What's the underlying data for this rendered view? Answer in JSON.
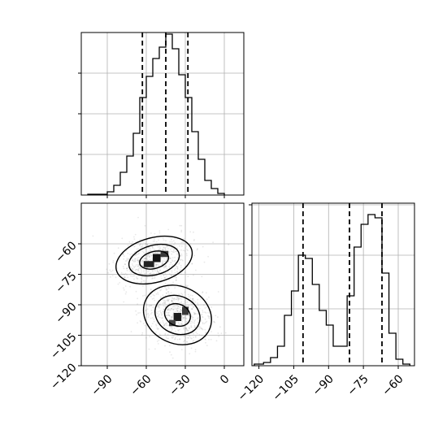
{
  "chart_data": [
    {
      "id": "top-hist",
      "type": "histogram",
      "variable": "x",
      "xlim": [
        -110,
        15
      ],
      "ylim": [
        0,
        1.0
      ],
      "bins": [
        {
          "x0": -105,
          "x1": -90,
          "v": 0.005
        },
        {
          "x0": -90,
          "x1": -85,
          "v": 0.02
        },
        {
          "x0": -85,
          "x1": -80,
          "v": 0.06
        },
        {
          "x0": -80,
          "x1": -75,
          "v": 0.14
        },
        {
          "x0": -75,
          "x1": -70,
          "v": 0.24
        },
        {
          "x0": -70,
          "x1": -65,
          "v": 0.38
        },
        {
          "x0": -65,
          "x1": -60,
          "v": 0.6
        },
        {
          "x0": -60,
          "x1": -55,
          "v": 0.73
        },
        {
          "x0": -55,
          "x1": -50,
          "v": 0.84
        },
        {
          "x0": -50,
          "x1": -45,
          "v": 0.91
        },
        {
          "x0": -45,
          "x1": -40,
          "v": 0.99
        },
        {
          "x0": -40,
          "x1": -35,
          "v": 0.9
        },
        {
          "x0": -35,
          "x1": -30,
          "v": 0.74
        },
        {
          "x0": -30,
          "x1": -25,
          "v": 0.6
        },
        {
          "x0": -25,
          "x1": -20,
          "v": 0.39
        },
        {
          "x0": -20,
          "x1": -15,
          "v": 0.22
        },
        {
          "x0": -15,
          "x1": -10,
          "v": 0.09
        },
        {
          "x0": -10,
          "x1": -5,
          "v": 0.04
        },
        {
          "x0": -5,
          "x1": 0,
          "v": 0.01
        }
      ],
      "quantiles": [
        -63,
        -45,
        -28
      ]
    },
    {
      "id": "right-hist",
      "type": "histogram",
      "variable": "y",
      "xlim": [
        -123,
        -53
      ],
      "ylim": [
        0,
        1.0
      ],
      "bins": [
        {
          "x0": -122,
          "x1": -118,
          "v": 0.01
        },
        {
          "x0": -118,
          "x1": -115,
          "v": 0.02
        },
        {
          "x0": -115,
          "x1": -112,
          "v": 0.05
        },
        {
          "x0": -112,
          "x1": -109,
          "v": 0.12
        },
        {
          "x0": -109,
          "x1": -106,
          "v": 0.31
        },
        {
          "x0": -106,
          "x1": -103,
          "v": 0.46
        },
        {
          "x0": -103,
          "x1": -100,
          "v": 0.68
        },
        {
          "x0": -100,
          "x1": -97,
          "v": 0.66
        },
        {
          "x0": -97,
          "x1": -94,
          "v": 0.5
        },
        {
          "x0": -94,
          "x1": -91,
          "v": 0.34
        },
        {
          "x0": -91,
          "x1": -88,
          "v": 0.25
        },
        {
          "x0": -88,
          "x1": -85,
          "v": 0.12
        },
        {
          "x0": -85,
          "x1": -82,
          "v": 0.12
        },
        {
          "x0": -82,
          "x1": -79,
          "v": 0.43
        },
        {
          "x0": -79,
          "x1": -76,
          "v": 0.73
        },
        {
          "x0": -76,
          "x1": -73,
          "v": 0.87
        },
        {
          "x0": -73,
          "x1": -70,
          "v": 0.93
        },
        {
          "x0": -70,
          "x1": -67,
          "v": 0.91
        },
        {
          "x0": -67,
          "x1": -64,
          "v": 0.57
        },
        {
          "x0": -64,
          "x1": -61,
          "v": 0.2
        },
        {
          "x0": -61,
          "x1": -58,
          "v": 0.04
        },
        {
          "x0": -58,
          "x1": -55,
          "v": 0.01
        }
      ],
      "quantiles": [
        -101,
        -81,
        -67
      ]
    },
    {
      "id": "joint-2d",
      "type": "heatmap",
      "xlim": [
        -110,
        15
      ],
      "ylim": [
        -120,
        -40
      ],
      "x_ticks": [
        -90,
        -60,
        -30,
        0
      ],
      "y_ticks": [
        -60,
        -75,
        -90,
        -105,
        -120
      ],
      "clusters": [
        {
          "cx": -54,
          "cy": -68,
          "rx": 30,
          "ry": 11,
          "angle": 15
        },
        {
          "cx": -36,
          "cy": -95,
          "rx": 27,
          "ry": 14,
          "angle": -25
        }
      ],
      "contour_levels": [
        1.0,
        0.66,
        0.38
      ],
      "density_peaks": [
        {
          "x": -52,
          "y": -67,
          "w": 6,
          "h": 4,
          "shade": "#151515"
        },
        {
          "x": -58,
          "y": -70,
          "w": 8,
          "h": 3,
          "shade": "#222222"
        },
        {
          "x": -46,
          "y": -65,
          "w": 6,
          "h": 3,
          "shade": "#3a3a3a"
        },
        {
          "x": -36,
          "y": -96,
          "w": 6,
          "h": 4,
          "shade": "#1f1f1f"
        },
        {
          "x": -30,
          "y": -93,
          "w": 5,
          "h": 4,
          "shade": "#3a3a3a"
        },
        {
          "x": -40,
          "y": -99,
          "w": 5,
          "h": 3,
          "shade": "#444444"
        }
      ]
    },
    {
      "id": "right-x-axis",
      "type": "axis",
      "ticks": [
        -120,
        -105,
        -90,
        -75,
        -60
      ]
    }
  ],
  "labels": {
    "x_bottom": [
      "−90",
      "−60",
      "−30",
      "0"
    ],
    "y_left": [
      "−60",
      "−75",
      "−90",
      "−105",
      "−120"
    ],
    "x_right": [
      "−120",
      "−105",
      "−90",
      "−75",
      "−60"
    ]
  }
}
